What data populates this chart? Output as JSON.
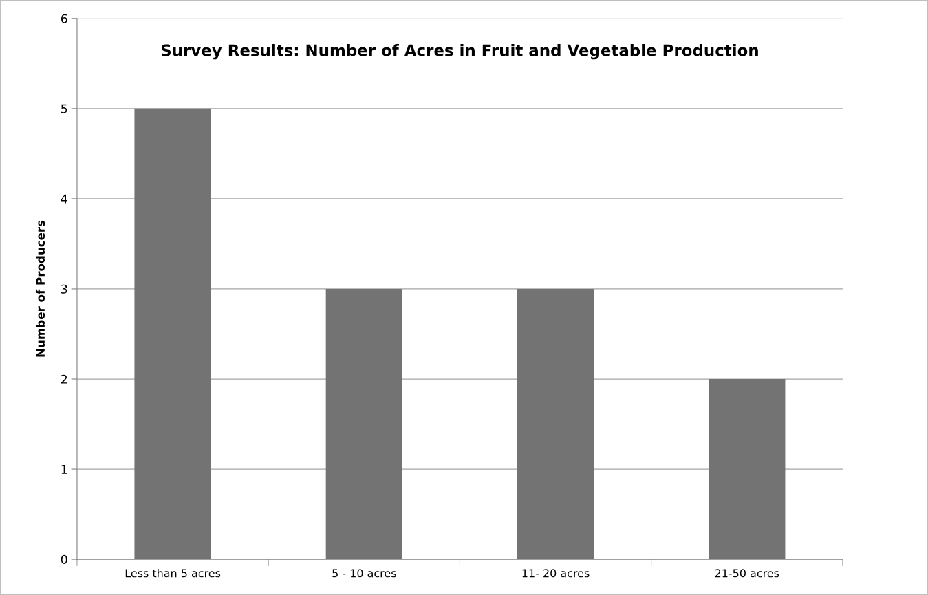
{
  "chart_data": {
    "type": "bar",
    "title": "Survey Results: Number of Acres in Fruit and Vegetable Production",
    "ylabel": "Number of Producers",
    "categories": [
      "Less than 5 acres",
      "5 - 10 acres",
      "11- 20 acres",
      "21-50 acres"
    ],
    "values": [
      5,
      3,
      3,
      2
    ],
    "color": "#737373",
    "ylim": [
      0,
      6
    ],
    "yticks": [
      0,
      1,
      2,
      3,
      4,
      5,
      6
    ],
    "grid": "y"
  }
}
